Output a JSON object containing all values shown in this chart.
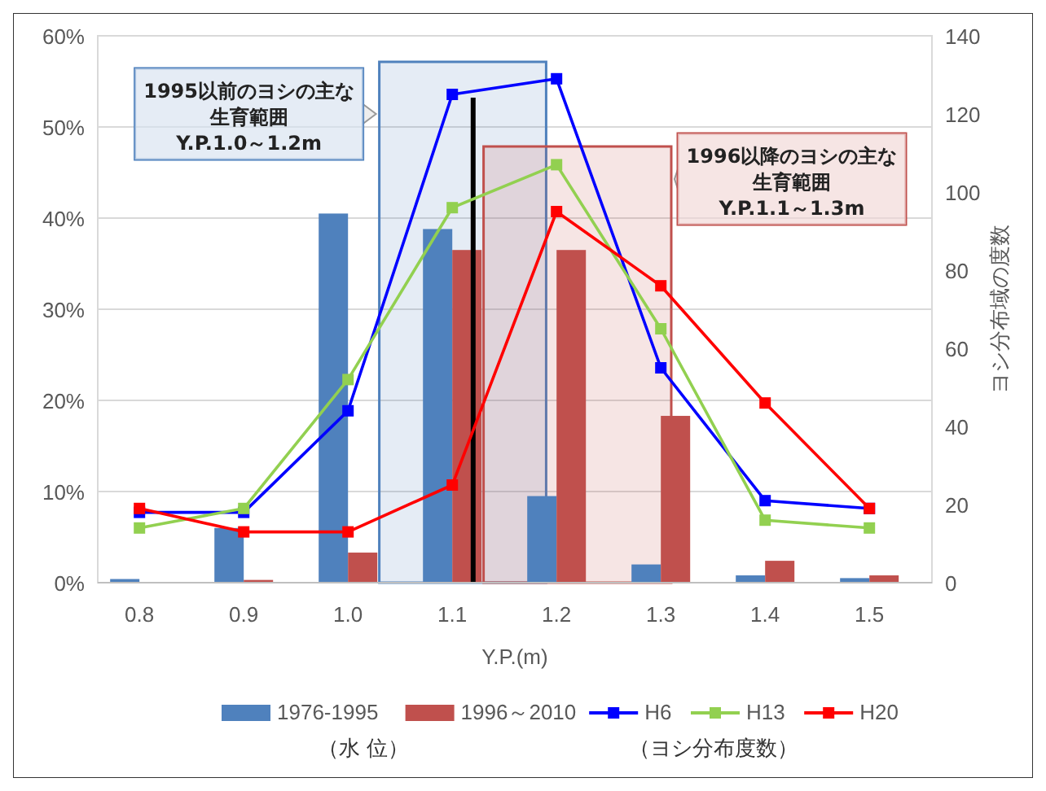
{
  "chart_data": {
    "type": "bar",
    "xlabel": "Y.P.(m)",
    "y2label": "ヨシ分布域の度数",
    "x": [
      0.8,
      0.9,
      1.0,
      1.1,
      1.2,
      1.3,
      1.4,
      1.5
    ],
    "xlim": [
      0.76,
      1.56
    ],
    "xticks": [
      {
        "value": 0.8,
        "label": "0.8"
      },
      {
        "value": 0.9,
        "label": "0.9"
      },
      {
        "value": 1.0,
        "label": "1.0"
      },
      {
        "value": 1.1,
        "label": "1.1"
      },
      {
        "value": 1.2,
        "label": "1.2"
      },
      {
        "value": 1.3,
        "label": "1.3"
      },
      {
        "value": 1.4,
        "label": "1.4"
      },
      {
        "value": 1.5,
        "label": "1.5"
      }
    ],
    "ylim": [
      0,
      60
    ],
    "yticks": [
      {
        "value": 0,
        "label": "0%"
      },
      {
        "value": 10,
        "label": "10%"
      },
      {
        "value": 20,
        "label": "20%"
      },
      {
        "value": 30,
        "label": "30%"
      },
      {
        "value": 40,
        "label": "40%"
      },
      {
        "value": 50,
        "label": "50%"
      },
      {
        "value": 60,
        "label": "60%"
      }
    ],
    "y2lim": [
      0,
      140
    ],
    "y2ticks": [
      0,
      20,
      40,
      60,
      80,
      100,
      120,
      140
    ],
    "grid": "y",
    "legend": "bottom",
    "marker": "square",
    "series": [
      {
        "name": "1976-1995",
        "color": "#4f81bd",
        "values": [
          0.4,
          6,
          40.5,
          38.8,
          9.5,
          2,
          0.8,
          0.5
        ]
      },
      {
        "name": "1996～2010",
        "color": "#c0504d",
        "values": [
          0,
          0.3,
          3.3,
          36.5,
          36.5,
          18.3,
          2.4,
          0.8
        ]
      },
      {
        "name": "H6",
        "type": "line",
        "axis": "y2",
        "color": "#0000ff",
        "values": [
          18,
          18,
          44,
          125,
          129,
          55,
          21,
          19
        ]
      },
      {
        "name": "H13",
        "type": "line",
        "axis": "y2",
        "color": "#92d050",
        "values": [
          14,
          19,
          52,
          96,
          107,
          65,
          16,
          14
        ]
      },
      {
        "name": "H20",
        "type": "line",
        "axis": "y2",
        "color": "#ff0000",
        "values": [
          19,
          13,
          13,
          25,
          95,
          76,
          46,
          19
        ]
      }
    ],
    "bands": [
      {
        "axis": "x",
        "from": 1.03,
        "to": 1.19,
        "label": "1995以前のヨシの主な生育範囲\nY.P.1.0～1.2m",
        "color": "#4f81bd"
      },
      {
        "axis": "x",
        "from": 1.13,
        "to": 1.31,
        "label": "1996以降のヨシの主な生育範囲\nY.P.1.1～1.3m",
        "color": "#c0504d"
      }
    ],
    "ref_lines": [
      {
        "axis": "x",
        "value": 1.12,
        "color": "#000000"
      }
    ],
    "annotations": [
      "（水 位）",
      "（ヨシ分布度数）"
    ]
  }
}
